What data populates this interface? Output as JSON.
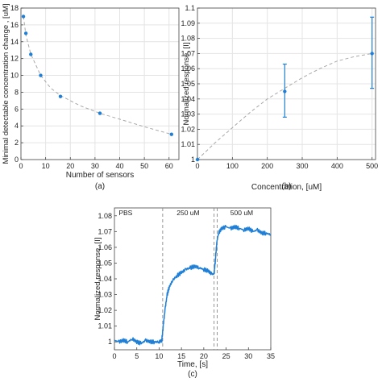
{
  "colors": {
    "series": "#1f7fd6",
    "fit": "#a8a8a8",
    "axis": "#444444",
    "grid": "#e4e4e4",
    "marker_line": "#8a8a8a"
  },
  "chart_data": [
    {
      "id": "a",
      "type": "scatter",
      "panel_label": "(a)",
      "xlabel": "Number of sensors",
      "ylabel": "Minimal detectable concentration change , [uM]",
      "xlim": [
        0,
        64
      ],
      "ylim": [
        0,
        18
      ],
      "xticks": [
        0,
        10,
        20,
        30,
        40,
        50,
        60
      ],
      "yticks": [
        0,
        2,
        4,
        6,
        8,
        10,
        12,
        14,
        16,
        18
      ],
      "grid": true,
      "points": [
        {
          "x": 1,
          "y": 17.0
        },
        {
          "x": 2,
          "y": 15.0
        },
        {
          "x": 4,
          "y": 12.5
        },
        {
          "x": 8,
          "y": 10.0
        },
        {
          "x": 16,
          "y": 7.5
        },
        {
          "x": 32,
          "y": 5.5
        },
        {
          "x": 61,
          "y": 3.0
        }
      ],
      "fit_line": [
        {
          "x": 1,
          "y": 17.0
        },
        {
          "x": 2,
          "y": 14.8
        },
        {
          "x": 4,
          "y": 12.5
        },
        {
          "x": 8,
          "y": 10.0
        },
        {
          "x": 12,
          "y": 8.5
        },
        {
          "x": 16,
          "y": 7.6
        },
        {
          "x": 24,
          "y": 6.4
        },
        {
          "x": 32,
          "y": 5.5
        },
        {
          "x": 40,
          "y": 4.8
        },
        {
          "x": 50,
          "y": 3.9
        },
        {
          "x": 61,
          "y": 3.0
        }
      ]
    },
    {
      "id": "b",
      "type": "scatter",
      "panel_label": "(b)",
      "xlabel": "Concentration, [uM]",
      "ylabel": "Normalized response, [I]",
      "xlim": [
        0,
        510
      ],
      "ylim": [
        1.0,
        1.1
      ],
      "xticks": [
        0,
        100,
        200,
        300,
        400,
        500
      ],
      "yticks": [
        1.0,
        1.01,
        1.02,
        1.03,
        1.04,
        1.05,
        1.06,
        1.07,
        1.08,
        1.09,
        1.1
      ],
      "ytick_labels": [
        "1",
        "1.01",
        "1.02",
        "1.03",
        "1.04",
        "1.05",
        "1.06",
        "1.07",
        "1.08",
        "1.09",
        "1.1"
      ],
      "grid": true,
      "points": [
        {
          "x": 0,
          "y": 1.0,
          "err_low": 1.0,
          "err_high": 1.0
        },
        {
          "x": 250,
          "y": 1.045,
          "err_low": 1.028,
          "err_high": 1.063
        },
        {
          "x": 500,
          "y": 1.07,
          "err_low": 1.047,
          "err_high": 1.094
        }
      ],
      "fit_line": [
        {
          "x": 0,
          "y": 1.0
        },
        {
          "x": 50,
          "y": 1.011
        },
        {
          "x": 100,
          "y": 1.021
        },
        {
          "x": 150,
          "y": 1.031
        },
        {
          "x": 200,
          "y": 1.04
        },
        {
          "x": 250,
          "y": 1.047
        },
        {
          "x": 300,
          "y": 1.054
        },
        {
          "x": 350,
          "y": 1.06
        },
        {
          "x": 400,
          "y": 1.065
        },
        {
          "x": 450,
          "y": 1.068
        },
        {
          "x": 500,
          "y": 1.07
        }
      ]
    },
    {
      "id": "c",
      "type": "line",
      "panel_label": "(c)",
      "xlabel": "Time, [s]",
      "ylabel": "Normalized response, [I]",
      "xlim": [
        0,
        35
      ],
      "ylim": [
        0.995,
        1.085
      ],
      "xticks": [
        0,
        5,
        10,
        15,
        20,
        25,
        30,
        35
      ],
      "yticks": [
        1.0,
        1.01,
        1.02,
        1.03,
        1.04,
        1.05,
        1.06,
        1.07,
        1.08
      ],
      "ytick_labels": [
        "1",
        "1.01",
        "1.02",
        "1.03",
        "1.04",
        "1.05",
        "1.06",
        "1.07",
        "1.08"
      ],
      "grid": false,
      "regions": [
        {
          "label": "PBS",
          "x": 2.5
        },
        {
          "label": "250 uM",
          "x": 16.5
        },
        {
          "label": "500 uM",
          "x": 28.5
        }
      ],
      "markers_x": [
        10.8,
        22.3,
        23.0
      ],
      "series": [
        {
          "values": [
            {
              "x": 0,
              "y": 1.001
            },
            {
              "x": 1,
              "y": 1.0
            },
            {
              "x": 2,
              "y": 1.001
            },
            {
              "x": 3,
              "y": 1.0
            },
            {
              "x": 4,
              "y": 1.002
            },
            {
              "x": 5,
              "y": 1.0
            },
            {
              "x": 6,
              "y": 0.999
            },
            {
              "x": 7,
              "y": 1.001
            },
            {
              "x": 8,
              "y": 1.0
            },
            {
              "x": 9,
              "y": 1.0
            },
            {
              "x": 10,
              "y": 1.0
            },
            {
              "x": 10.6,
              "y": 1.001
            },
            {
              "x": 11,
              "y": 1.012
            },
            {
              "x": 11.4,
              "y": 1.022
            },
            {
              "x": 11.8,
              "y": 1.03
            },
            {
              "x": 12.3,
              "y": 1.035
            },
            {
              "x": 13,
              "y": 1.039
            },
            {
              "x": 14,
              "y": 1.042
            },
            {
              "x": 15,
              "y": 1.044
            },
            {
              "x": 16,
              "y": 1.046
            },
            {
              "x": 17,
              "y": 1.047
            },
            {
              "x": 18,
              "y": 1.048
            },
            {
              "x": 19,
              "y": 1.047
            },
            {
              "x": 20,
              "y": 1.046
            },
            {
              "x": 21,
              "y": 1.045
            },
            {
              "x": 21.8,
              "y": 1.043
            },
            {
              "x": 22.3,
              "y": 1.043
            },
            {
              "x": 22.6,
              "y": 1.052
            },
            {
              "x": 22.9,
              "y": 1.063
            },
            {
              "x": 23.3,
              "y": 1.069
            },
            {
              "x": 24,
              "y": 1.072
            },
            {
              "x": 25,
              "y": 1.073
            },
            {
              "x": 26,
              "y": 1.072
            },
            {
              "x": 27,
              "y": 1.073
            },
            {
              "x": 28,
              "y": 1.072
            },
            {
              "x": 29,
              "y": 1.071
            },
            {
              "x": 30,
              "y": 1.072
            },
            {
              "x": 31,
              "y": 1.07
            },
            {
              "x": 32,
              "y": 1.071
            },
            {
              "x": 33,
              "y": 1.069
            },
            {
              "x": 34,
              "y": 1.069
            },
            {
              "x": 35,
              "y": 1.068
            }
          ]
        }
      ]
    }
  ]
}
